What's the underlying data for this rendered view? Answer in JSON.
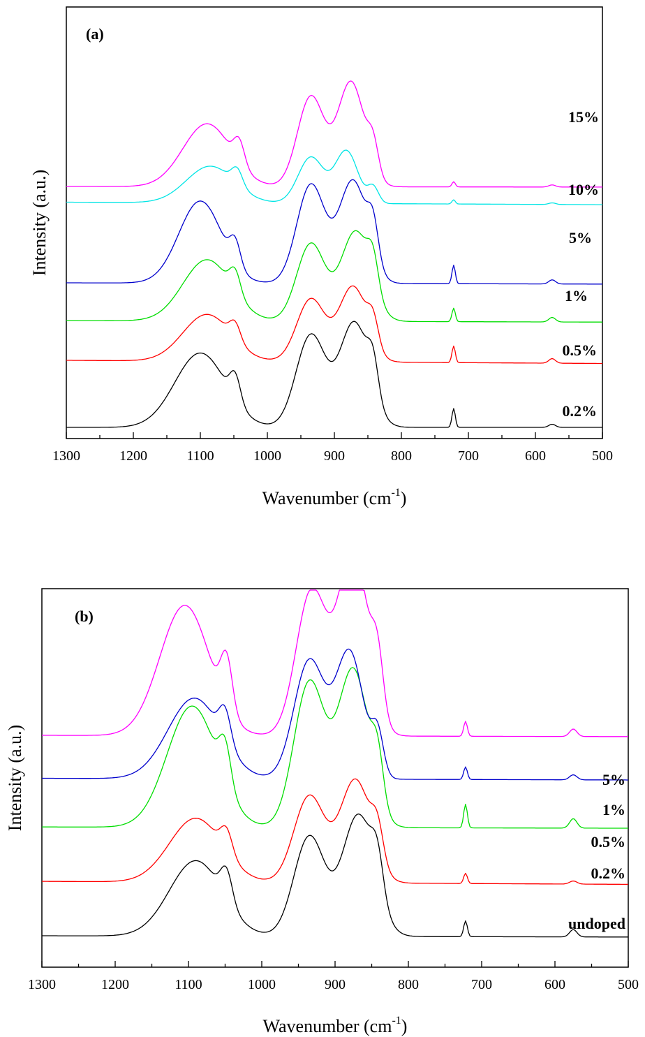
{
  "chart_data": [
    {
      "type": "line",
      "panel_label": "(a)",
      "xlabel_main": "Wavenumber (cm",
      "xlabel_sup": "-1",
      "xlabel_close": ")",
      "ylabel": "Intensity (a.u.)",
      "xlim": [
        1300,
        500
      ],
      "x_reversed": true,
      "xticks": [
        1300,
        1200,
        1100,
        1000,
        900,
        800,
        700,
        600,
        500
      ],
      "y_ticks_shown": false,
      "series": [
        {
          "name": "0.2%",
          "color": "#000000",
          "offset": 0.0,
          "scale": 1.0,
          "peaks": [
            [
              1100,
              0.71,
              38
            ],
            [
              1048,
              0.25,
              8
            ],
            [
              935,
              0.88,
              22
            ],
            [
              870,
              1.0,
              22
            ],
            [
              842,
              0.32,
              8
            ],
            [
              722,
              0.18,
              2.5
            ],
            [
              575,
              0.03,
              5
            ]
          ],
          "baseline": [
            0.0,
            0.0
          ]
        },
        {
          "name": "0.5%",
          "color": "#ff0000",
          "offset": 0.64,
          "scale": 0.72,
          "peaks": [
            [
              1090,
              0.62,
              36
            ],
            [
              1048,
              0.22,
              8
            ],
            [
              935,
              0.83,
              21
            ],
            [
              872,
              1.0,
              21
            ],
            [
              842,
              0.34,
              8
            ],
            [
              722,
              0.22,
              2.5
            ],
            [
              575,
              0.06,
              5
            ]
          ],
          "baseline": [
            0.0,
            -0.1
          ]
        },
        {
          "name": "1%",
          "color": "#00dd00",
          "offset": 1.02,
          "scale": 0.86,
          "peaks": [
            [
              1090,
              0.68,
              36
            ],
            [
              1048,
              0.24,
              8
            ],
            [
              935,
              0.86,
              21
            ],
            [
              868,
              1.0,
              22
            ],
            [
              842,
              0.34,
              8
            ],
            [
              722,
              0.15,
              2.5
            ],
            [
              575,
              0.05,
              5
            ]
          ],
          "baseline": [
            0.0,
            -0.05
          ]
        },
        {
          "name": "5%",
          "color": "#0000cc",
          "offset": 1.38,
          "scale": 0.98,
          "peaks": [
            [
              1100,
              0.8,
              32
            ],
            [
              1048,
              0.24,
              8
            ],
            [
              935,
              0.96,
              21
            ],
            [
              872,
              1.0,
              21
            ],
            [
              842,
              0.36,
              8
            ],
            [
              722,
              0.18,
              2.5
            ],
            [
              575,
              0.04,
              5
            ]
          ],
          "baseline": [
            0.0,
            -0.04
          ]
        },
        {
          "name": "10%",
          "color": "#00e5e5",
          "offset": 2.15,
          "scale": 0.5,
          "peaks": [
            [
              1085,
              0.7,
              36
            ],
            [
              1045,
              0.3,
              8
            ],
            [
              935,
              0.88,
              19
            ],
            [
              882,
              1.0,
              17
            ],
            [
              842,
              0.3,
              8
            ],
            [
              722,
              0.08,
              2.5
            ],
            [
              575,
              0.03,
              5
            ]
          ],
          "baseline": [
            0.0,
            -0.08
          ]
        },
        {
          "name": "15%",
          "color": "#ff00ff",
          "offset": 2.3,
          "scale": 1.0,
          "peaks": [
            [
              1090,
              0.6,
              36
            ],
            [
              1042,
              0.22,
              8
            ],
            [
              935,
              0.86,
              20
            ],
            [
              875,
              1.0,
              20
            ],
            [
              842,
              0.28,
              8
            ],
            [
              722,
              0.05,
              2.5
            ],
            [
              575,
              0.02,
              5
            ]
          ],
          "baseline": [
            0.0,
            -0.02
          ]
        }
      ]
    },
    {
      "type": "line",
      "panel_label": "(b)",
      "xlabel_main": "Wavenumber (cm",
      "xlabel_sup": "-1",
      "xlabel_close": ")",
      "ylabel": "Intensity (a.u.)",
      "xlim": [
        1300,
        500
      ],
      "x_reversed": true,
      "xticks": [
        1300,
        1200,
        1100,
        1000,
        900,
        800,
        700,
        600,
        500
      ],
      "y_ticks_shown": false,
      "series": [
        {
          "name": "undoped",
          "color": "#000000",
          "offset": 0.0,
          "scale": 0.85,
          "peaks": [
            [
              1090,
              0.62,
              36
            ],
            [
              1048,
              0.25,
              8
            ],
            [
              935,
              0.82,
              21
            ],
            [
              868,
              1.0,
              22
            ],
            [
              842,
              0.3,
              8
            ],
            [
              722,
              0.13,
              2.5
            ],
            [
              575,
              0.06,
              5
            ]
          ],
          "baseline": [
            0.0,
            -0.03
          ]
        },
        {
          "name": "0.2%",
          "color": "#ff0000",
          "offset": 0.38,
          "scale": 0.72,
          "peaks": [
            [
              1090,
              0.62,
              36
            ],
            [
              1048,
              0.22,
              8
            ],
            [
              935,
              0.84,
              21
            ],
            [
              872,
              1.0,
              21
            ],
            [
              842,
              0.32,
              8
            ],
            [
              722,
              0.1,
              2.5
            ],
            [
              575,
              0.03,
              5
            ]
          ],
          "baseline": [
            0.0,
            -0.07
          ]
        },
        {
          "name": "0.5%",
          "color": "#00dd00",
          "offset": 0.76,
          "scale": 1.1,
          "peaks": [
            [
              1095,
              0.77,
              34
            ],
            [
              1050,
              0.25,
              8
            ],
            [
              935,
              0.92,
              21
            ],
            [
              875,
              1.0,
              21
            ],
            [
              842,
              0.3,
              8
            ],
            [
              722,
              0.15,
              2.5
            ],
            [
              575,
              0.06,
              5
            ]
          ],
          "baseline": [
            0.0,
            -0.03
          ]
        },
        {
          "name": "1%",
          "color": "#0000cc",
          "offset": 1.1,
          "scale": 0.88,
          "peaks": [
            [
              1092,
              0.64,
              36
            ],
            [
              1050,
              0.25,
              8
            ],
            [
              935,
              0.94,
              21
            ],
            [
              880,
              1.0,
              19
            ],
            [
              842,
              0.32,
              8
            ],
            [
              722,
              0.1,
              2.5
            ],
            [
              575,
              0.04,
              5
            ]
          ],
          "baseline": [
            0.0,
            -0.04
          ]
        },
        {
          "name": "5%",
          "color": "#ff00ff",
          "offset": 1.4,
          "scale": 1.3,
          "peaks": [
            [
              1105,
              0.7,
              34
            ],
            [
              1048,
              0.28,
              8
            ],
            [
              932,
              0.78,
              21
            ],
            [
              875,
              1.0,
              20
            ],
            [
              842,
              0.3,
              8
            ],
            [
              722,
              0.08,
              2.5
            ],
            [
              575,
              0.04,
              5
            ]
          ],
          "baseline": [
            0.0,
            -0.03
          ]
        }
      ]
    }
  ]
}
